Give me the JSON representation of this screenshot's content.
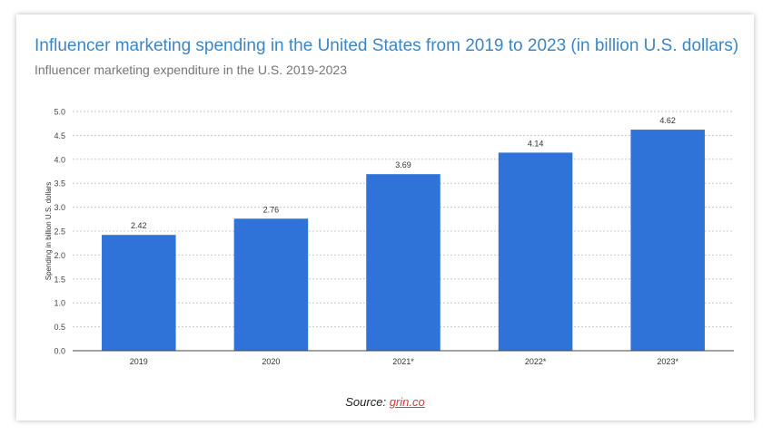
{
  "chart_data": {
    "type": "bar",
    "title": "Influencer marketing spending in the United States from 2019 to 2023 (in billion U.S. dollars)",
    "subtitle": "Influencer marketing expenditure in the U.S. 2019-2023",
    "categories": [
      "2019",
      "2020",
      "2021*",
      "2022*",
      "2023*"
    ],
    "values": [
      2.42,
      2.76,
      3.69,
      4.14,
      4.62
    ],
    "value_labels": [
      "2.42",
      "2.76",
      "3.69",
      "4.14",
      "4.62"
    ],
    "xlabel": "",
    "ylabel": "Spending in billion U.S. dollars",
    "ylim": [
      0,
      5.0
    ],
    "yticks": [
      "0.0",
      "0.5",
      "1.0",
      "1.5",
      "2.0",
      "2.5",
      "3.0",
      "3.5",
      "4.0",
      "4.5",
      "5.0"
    ],
    "grid": true,
    "bar_color": "#2f72d8"
  },
  "source": {
    "prefix": "Source: ",
    "link": "grin.co",
    "link_color": "#d33b3b"
  }
}
